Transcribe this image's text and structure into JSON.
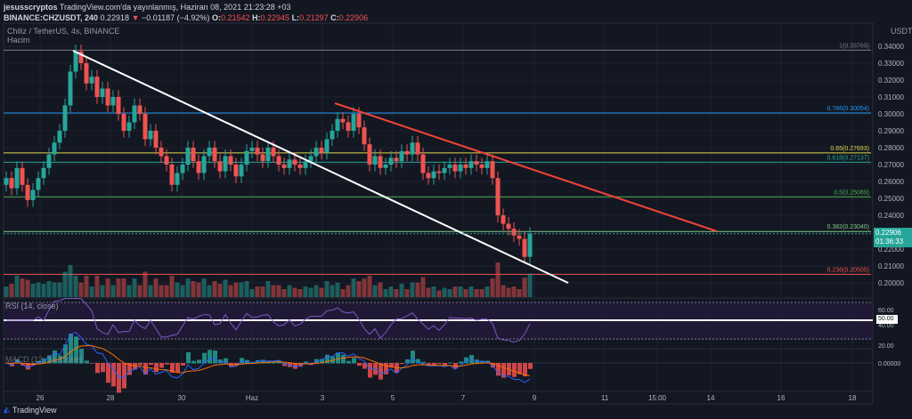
{
  "header": {
    "author": "jesusscryptos",
    "published": "TradingView.com'da yayınlanmış, Haziran 08, 2021 21:23:28 +03",
    "symbol": "BINANCE:CHZUSDT, 240",
    "last": "0.22918",
    "change": "−0.01187 (−4.92%)",
    "o_label": "O:",
    "o": "0.21542",
    "h_label": "H:",
    "h": "0.22945",
    "l_label": "L:",
    "l": "0.21297",
    "c_label": "C:",
    "c": "0.22906"
  },
  "pane": {
    "title": "Chiliz / TetherUS, 4s, BINANCE",
    "volume": "Hacim",
    "rsi": "RSI (14, close)",
    "macd": "MACD (12, 26, close)"
  },
  "price_axis": {
    "currency": "USDT",
    "ticks": [
      "0.34000",
      "0.33000",
      "0.32000",
      "0.31000",
      "0.30000",
      "0.29000",
      "0.28000",
      "0.27000",
      "0.26000",
      "0.25000",
      "0.24000",
      "0.22000",
      "0.21000",
      "0.20000"
    ],
    "tick_values": [
      0.34,
      0.33,
      0.32,
      0.31,
      0.3,
      0.29,
      0.28,
      0.27,
      0.26,
      0.25,
      0.24,
      0.22,
      0.21,
      0.2
    ],
    "current_price": "0.22906",
    "countdown": "01:36:33"
  },
  "fib_levels": [
    {
      "label": "1(0.33769)",
      "value": 0.33769,
      "color": "#787b86"
    },
    {
      "label": "0.786(0.30054)",
      "value": 0.30054,
      "color": "#2196f3"
    },
    {
      "label": "0.65(0.27693)",
      "value": 0.27693,
      "color": "#e0d84a"
    },
    {
      "label": "0.618(0.27137)",
      "value": 0.27137,
      "color": "#26a69a"
    },
    {
      "label": "0.5(0.25089)",
      "value": 0.25089,
      "color": "#4caf50"
    },
    {
      "label": "0.382(0.23040)",
      "value": 0.2304,
      "color": "#81c784"
    },
    {
      "label": "0.236(0.20505)",
      "value": 0.20505,
      "color": "#ef5350"
    }
  ],
  "rsi_axis": [
    "60.00",
    "50.00",
    "40.00",
    "20.00"
  ],
  "macd_axis": "0.00000",
  "time_axis": [
    "26",
    "28",
    "30",
    "Haz",
    "3",
    "5",
    "7",
    "9",
    "11",
    "15:00",
    "14",
    "16",
    "18"
  ],
  "closes": [
    0.262,
    0.256,
    0.268,
    0.258,
    0.249,
    0.255,
    0.262,
    0.268,
    0.276,
    0.283,
    0.29,
    0.305,
    0.325,
    0.337,
    0.33,
    0.318,
    0.322,
    0.31,
    0.315,
    0.305,
    0.31,
    0.3,
    0.29,
    0.295,
    0.305,
    0.3,
    0.285,
    0.29,
    0.28,
    0.275,
    0.27,
    0.258,
    0.265,
    0.27,
    0.28,
    0.272,
    0.265,
    0.275,
    0.28,
    0.272,
    0.266,
    0.275,
    0.27,
    0.263,
    0.27,
    0.278,
    0.28,
    0.276,
    0.272,
    0.28,
    0.275,
    0.27,
    0.268,
    0.273,
    0.27,
    0.268,
    0.272,
    0.275,
    0.28,
    0.277,
    0.285,
    0.29,
    0.297,
    0.295,
    0.29,
    0.3,
    0.292,
    0.282,
    0.27,
    0.275,
    0.268,
    0.27,
    0.274,
    0.272,
    0.278,
    0.276,
    0.283,
    0.276,
    0.265,
    0.262,
    0.266,
    0.265,
    0.268,
    0.27,
    0.266,
    0.27,
    0.268,
    0.272,
    0.27,
    0.268,
    0.272,
    0.262,
    0.24,
    0.235,
    0.232,
    0.228,
    0.226,
    0.2154,
    0.229
  ],
  "colors": {
    "up": "#26a69a",
    "down": "#ef5350",
    "bg": "#131722",
    "rsi": "#7e57c2",
    "macd": "#2962ff",
    "signal": "#ff6d00"
  },
  "footer": {
    "brand": "TradingView"
  }
}
